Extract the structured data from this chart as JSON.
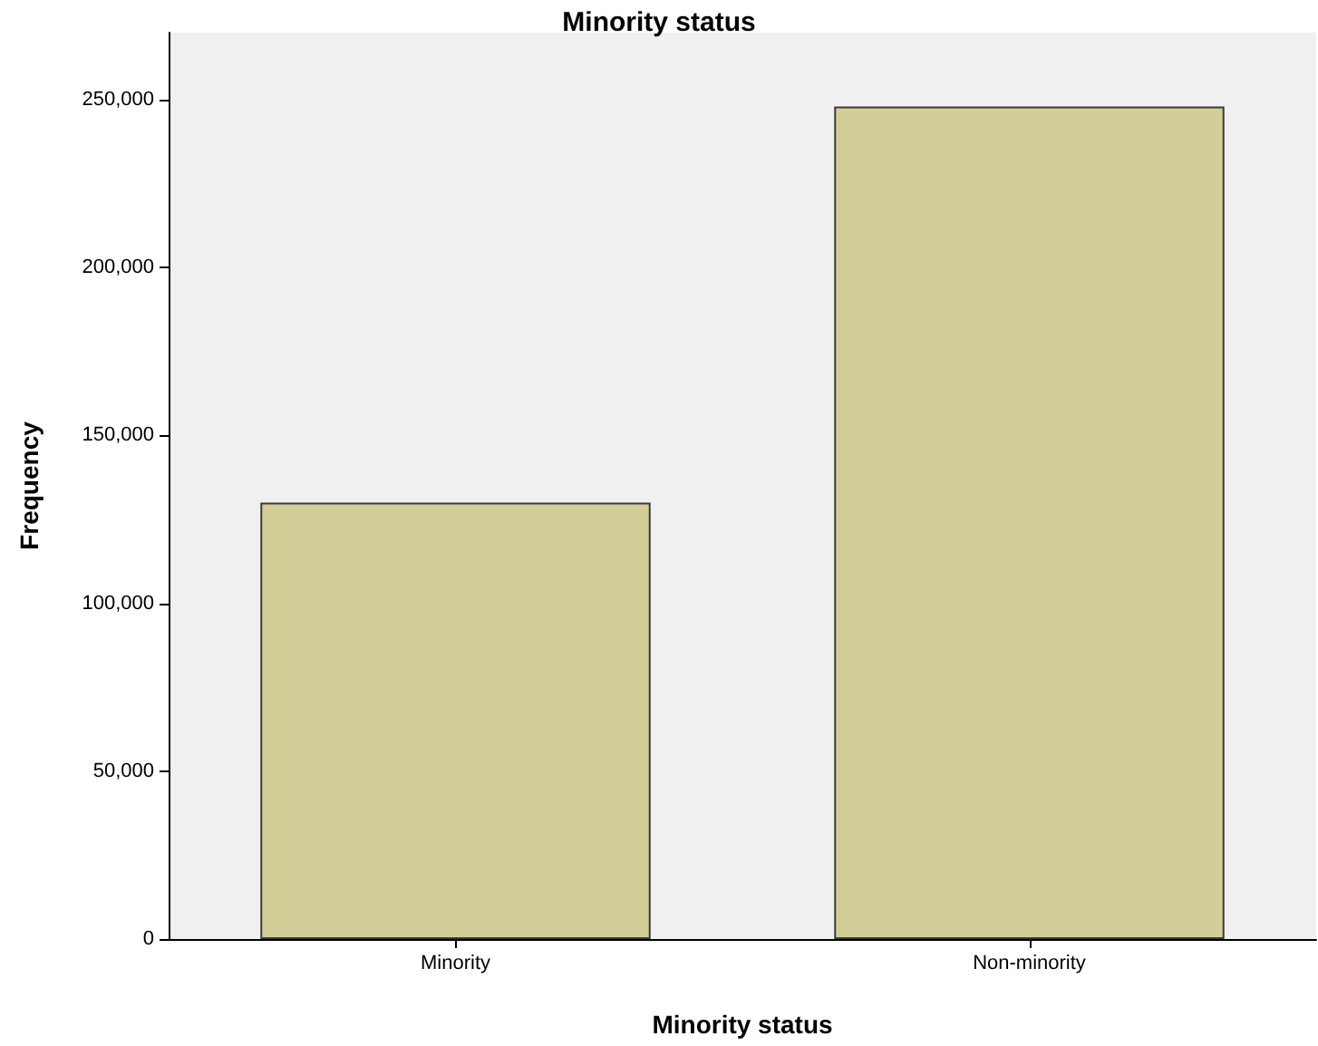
{
  "chart_data": {
    "type": "bar",
    "title": "Minority status",
    "xlabel": "Minority status",
    "ylabel": "Frequency",
    "categories": [
      "Minority",
      "Non-minority"
    ],
    "values": [
      130000,
      248000
    ],
    "color": "#d3ce97",
    "ylim": [
      0,
      270000
    ],
    "yticks": [
      0,
      {
        "value": 50000,
        "label": "50,000"
      },
      {
        "value": 100000,
        "label": "100,000"
      },
      {
        "value": 150000,
        "label": "150,000"
      },
      {
        "value": 200000,
        "label": "200,000"
      },
      {
        "value": 250000,
        "label": "250,000"
      }
    ],
    "grid": false
  }
}
